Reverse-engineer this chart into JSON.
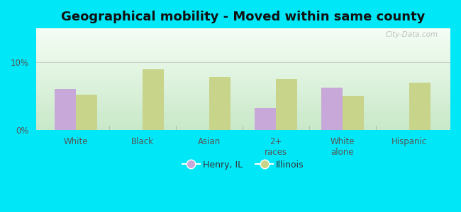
{
  "title": "Geographical mobility - Moved within same county",
  "categories": [
    "White",
    "Black",
    "Asian",
    "2+\nraces",
    "White\nalone",
    "Hispanic"
  ],
  "henry_values": [
    6.0,
    0,
    0,
    3.2,
    6.2,
    0
  ],
  "illinois_values": [
    5.2,
    9.0,
    7.8,
    7.5,
    5.0,
    7.0
  ],
  "henry_color": "#c8a8d8",
  "illinois_color": "#c8d48a",
  "background_outer": "#00e8f8",
  "background_inner_top": "#f5fdf5",
  "background_inner_bottom": "#c8e8c8",
  "ylim": [
    0,
    15
  ],
  "yticks": [
    0,
    10
  ],
  "ytick_labels": [
    "0%",
    "10%"
  ],
  "bar_width": 0.32,
  "legend_labels": [
    "Henry, IL",
    "Illinois"
  ],
  "title_fontsize": 13,
  "watermark": "City-Data.com",
  "grid_color": "#dddddd",
  "tick_color": "#888888"
}
